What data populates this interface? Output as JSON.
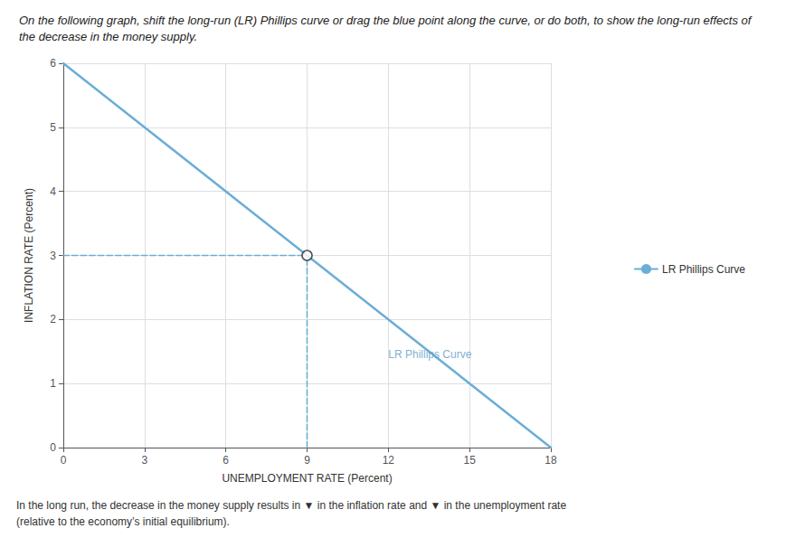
{
  "chart_data": {
    "type": "line",
    "title": "On the following graph, shift the long-run (LR) Phillips curve or drag the blue point along the curve, or do both, to show the long-run effects of the decrease in the money supply.",
    "xlabel": "UNEMPLOYMENT RATE (Percent)",
    "ylabel": "INFLATION RATE (Percent)",
    "xlim": [
      0,
      18
    ],
    "ylim": [
      0,
      6
    ],
    "xticks": [
      0,
      3,
      6,
      9,
      12,
      15,
      18
    ],
    "yticks": [
      0,
      1,
      2,
      3,
      4,
      5,
      6
    ],
    "grid": true,
    "legend": "right",
    "series": [
      {
        "name": "LR Phillips Curve",
        "type": "line",
        "color": "#6baed6",
        "x": [
          0,
          18
        ],
        "values": [
          6,
          0
        ]
      },
      {
        "type": "line",
        "line_style": "dashed",
        "color": "#6baed6",
        "x": [
          0,
          9
        ],
        "values": [
          3,
          3
        ]
      },
      {
        "type": "line",
        "line_style": "dashed",
        "color": "#6baed6",
        "x": [
          9,
          9
        ],
        "values": [
          0,
          3
        ]
      },
      {
        "type": "scatter",
        "marker": "circle",
        "color": "#2c2c2c",
        "x": [
          9
        ],
        "values": [
          3
        ]
      }
    ],
    "annotations": [
      {
        "text": "LR Phillips Curve",
        "x": 12.0,
        "y": 1.45,
        "color": "#5a9bc4"
      },
      {
        "text": "In the long run, the decrease in the money supply results in ▼ in the inflation rate and ▼ in the unemployment rate"
      },
      {
        "text": "(relative to the economy’s initial equilibrium)."
      }
    ]
  }
}
